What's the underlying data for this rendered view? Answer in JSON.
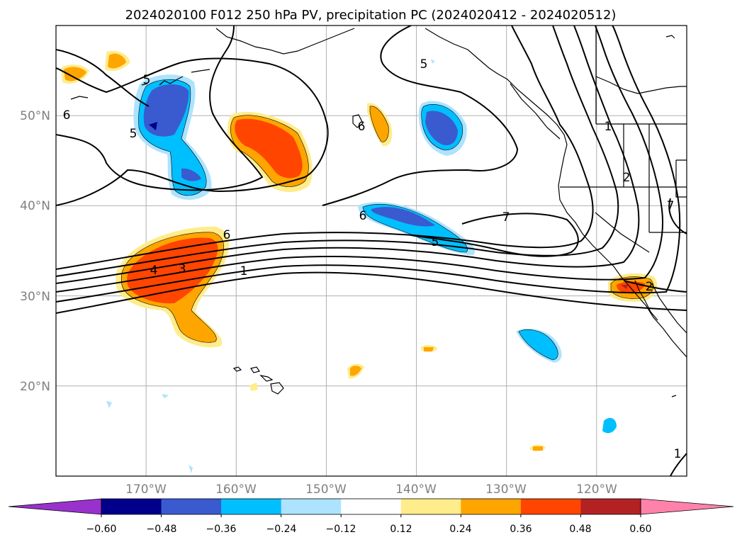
{
  "title": "2024020100 F012 250 hPa PV, precipitation PC (2024020412 - 2024020512)",
  "map": {
    "lon_range": [
      -180,
      -110
    ],
    "lat_range": [
      10,
      60
    ],
    "lat_ticks": [
      {
        "lat": 50,
        "label": "50°N"
      },
      {
        "lat": 40,
        "label": "40°N"
      },
      {
        "lat": 30,
        "label": "30°N"
      },
      {
        "lat": 20,
        "label": "20°N"
      }
    ],
    "lon_ticks": [
      {
        "lon": -170,
        "label": "170°W"
      },
      {
        "lon": -160,
        "label": "160°W"
      },
      {
        "lon": -150,
        "label": "150°W"
      },
      {
        "lon": -140,
        "label": "140°W"
      },
      {
        "lon": -130,
        "label": "130°W"
      },
      {
        "lon": -120,
        "label": "120°W"
      }
    ],
    "gridlines": true
  },
  "colorbar": {
    "colors": [
      "#9932cc",
      "#00008b",
      "#3a5bcf",
      "#00bfff",
      "#ade3ff",
      "#ffffff",
      "#ffec8b",
      "#ffa500",
      "#ff4500",
      "#b22222",
      "#ff82ab"
    ],
    "tick_labels": [
      "−0.60",
      "−0.48",
      "−0.36",
      "−0.24",
      "−0.12",
      "0.12",
      "0.24",
      "0.36",
      "0.48",
      "0.60"
    ],
    "extend": "both"
  },
  "contour_labels": [
    "1",
    "3",
    "4",
    "5",
    "5",
    "5",
    "6",
    "6",
    "6",
    "6",
    "7",
    "1",
    "2",
    "2",
    "5",
    "1",
    "7"
  ]
}
